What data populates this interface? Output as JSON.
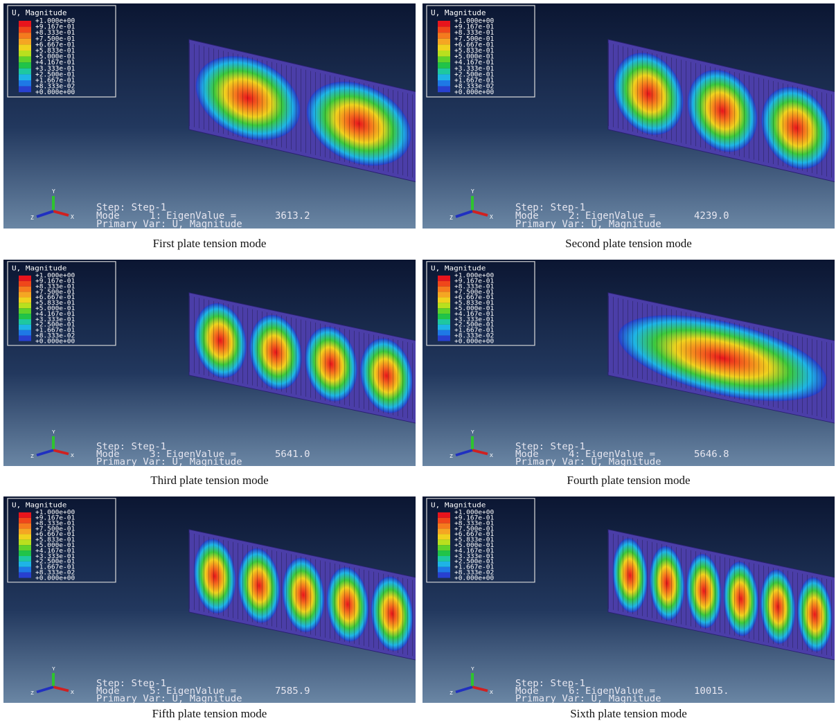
{
  "legend": {
    "title": "U, Magnitude",
    "labels": [
      "+1.000e+00",
      "+9.167e-01",
      "+8.333e-01",
      "+7.500e-01",
      "+6.667e-01",
      "+5.833e-01",
      "+5.000e-01",
      "+4.167e-01",
      "+3.333e-01",
      "+2.500e-01",
      "+1.667e-01",
      "+8.333e-02",
      "+0.000e+00"
    ]
  },
  "axes": {
    "y": "Y",
    "z": "Z",
    "x": "X"
  },
  "step": "Step: Step-1",
  "mode_label": "Mode",
  "eigen_label": "EigenValue =",
  "primary_var": "Primary Var: U, Magnitude",
  "panels": [
    {
      "mode": "1:",
      "eigenvalue": "3613.2",
      "caption": "First plate tension mode"
    },
    {
      "mode": "2:",
      "eigenvalue": "4239.0",
      "caption": "Second plate tension mode"
    },
    {
      "mode": "3:",
      "eigenvalue": "5641.0",
      "caption": "Third plate tension mode"
    },
    {
      "mode": "4:",
      "eigenvalue": "5646.8",
      "caption": "Fourth plate tension mode"
    },
    {
      "mode": "5:",
      "eigenvalue": "7585.9",
      "caption": "Fifth plate tension mode"
    },
    {
      "mode": "6:",
      "eigenvalue": "10015.",
      "caption": "Sixth plate tension mode"
    }
  ]
}
